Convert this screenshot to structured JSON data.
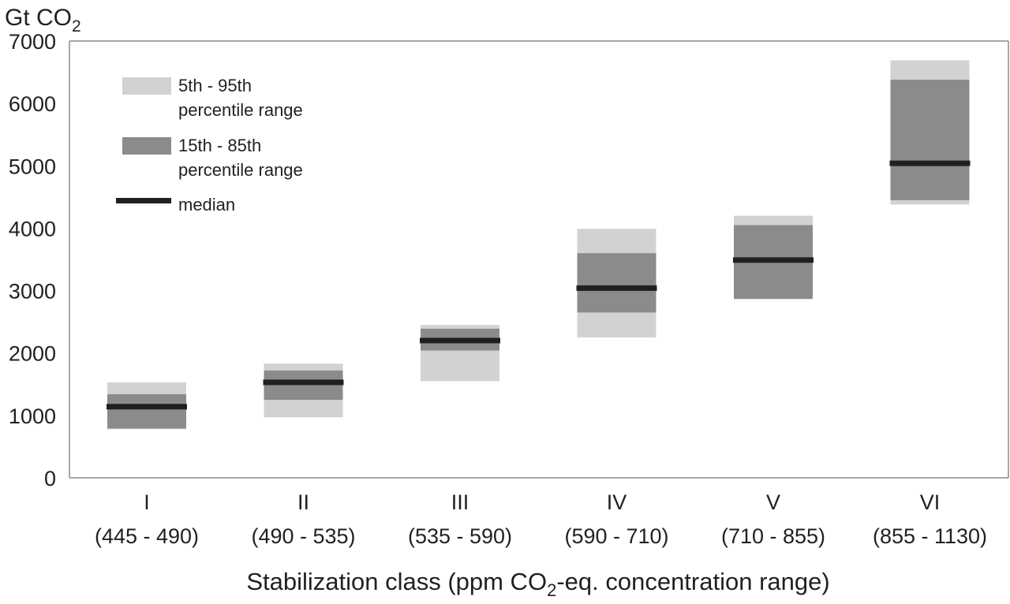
{
  "chart_data": {
    "type": "range-bar",
    "y_unit_label": "Gt CO",
    "y_unit_subscript": "2",
    "ylim": [
      0,
      7000
    ],
    "yticks": [
      "0",
      "1000",
      "2000",
      "3000",
      "4000",
      "5000",
      "6000",
      "7000"
    ],
    "categories": [
      {
        "roman": "I",
        "range": "(445 - 490)"
      },
      {
        "roman": "II",
        "range": "(490 - 535)"
      },
      {
        "roman": "III",
        "range": "(535 - 590)"
      },
      {
        "roman": "IV",
        "range": "(590 - 710)"
      },
      {
        "roman": "V",
        "range": "(710 - 855)"
      },
      {
        "roman": "VI",
        "range": "(855 - 1130)"
      }
    ],
    "p5_p95": [
      [
        780,
        1530
      ],
      [
        970,
        1830
      ],
      [
        1550,
        2450
      ],
      [
        2250,
        3990
      ],
      [
        2860,
        4200
      ],
      [
        4380,
        6690
      ]
    ],
    "p15_p85": [
      [
        790,
        1340
      ],
      [
        1250,
        1720
      ],
      [
        2040,
        2390
      ],
      [
        2650,
        3600
      ],
      [
        2870,
        4050
      ],
      [
        4450,
        6380
      ]
    ],
    "median": [
      1140,
      1530,
      2200,
      3040,
      3490,
      5040
    ],
    "xlabel_pre": "Stabilization class (ppm CO",
    "xlabel_sub": "2",
    "xlabel_post": "-eq. concentration range)",
    "legend": [
      {
        "lines": [
          "5th - 95th",
          "percentile range"
        ],
        "color": "#d1d2d4"
      },
      {
        "lines": [
          "15th - 85th",
          "percentile range"
        ],
        "color": "#8a8b8d"
      },
      {
        "lines": [
          "median"
        ],
        "color": "#231f20"
      }
    ],
    "colors": {
      "p5_p95": "#d1d2d4",
      "p15_p85": "#8a8b8d",
      "median": "#231f20",
      "axis": "#8c8c8c"
    },
    "grid": false,
    "legend_position": "top-left"
  }
}
